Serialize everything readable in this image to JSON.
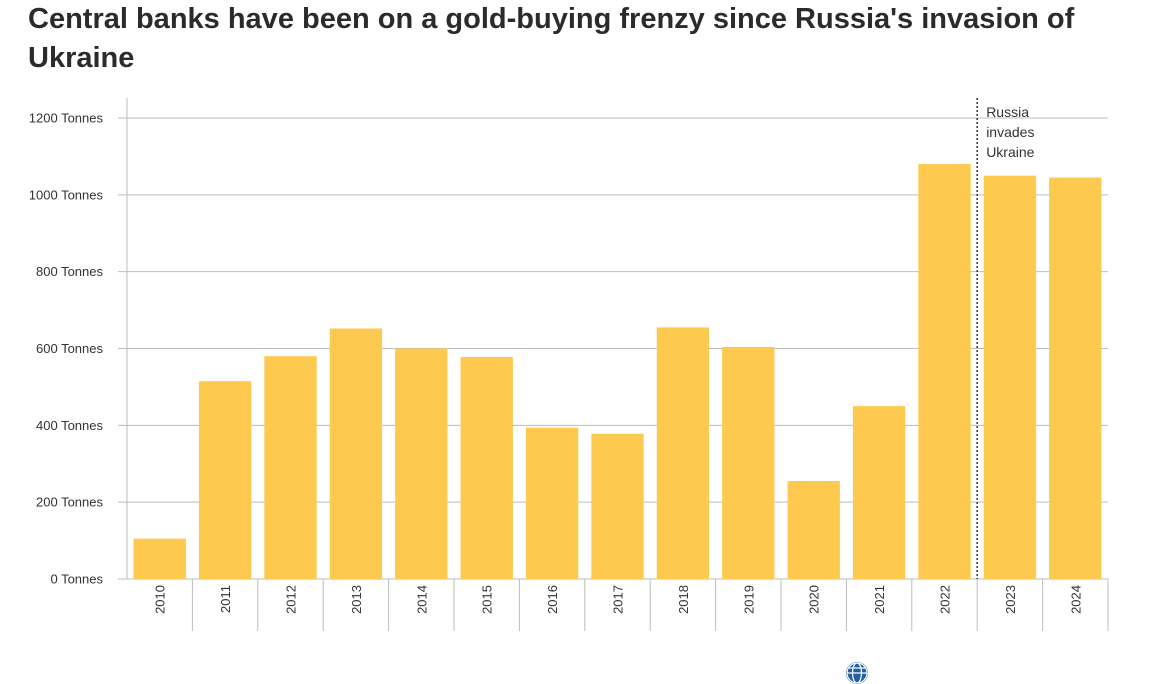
{
  "title": "Central banks have been on a gold-buying frenzy since Russia's invasion of Ukraine",
  "annotation_lines": [
    "Russia",
    "invades",
    "Ukraine"
  ],
  "colors": {
    "bar": "#fdc94e",
    "grid": "#bdbdbd",
    "annotation_line": "#333333"
  },
  "footer_icon": "globe-icon",
  "chart_data": {
    "type": "bar",
    "categories": [
      "2010",
      "2011",
      "2012",
      "2013",
      "2014",
      "2015",
      "2016",
      "2017",
      "2018",
      "2019",
      "2020",
      "2021",
      "2022",
      "2023",
      "2024"
    ],
    "values": [
      105,
      515,
      580,
      652,
      600,
      578,
      394,
      378,
      655,
      604,
      255,
      450,
      1080,
      1050,
      1045
    ],
    "y_ticks": [
      0,
      200,
      400,
      600,
      800,
      1000,
      1200
    ],
    "y_tick_labels": [
      "0 Tonnes",
      "200 Tonnes",
      "400 Tonnes",
      "600 Tonnes",
      "800 Tonnes",
      "1000 Tonnes",
      "1200 Tonnes"
    ],
    "ylim": [
      0,
      1250
    ],
    "annotation": {
      "between": [
        "2022",
        "2023"
      ],
      "text": "Russia invades Ukraine"
    },
    "grid": true,
    "legend": "none"
  }
}
